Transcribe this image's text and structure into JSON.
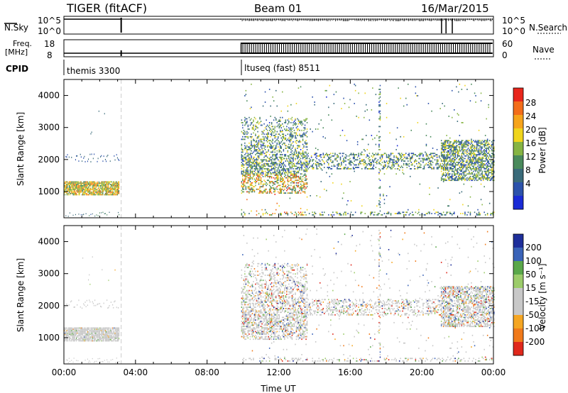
{
  "header": {
    "title": "TIGER (fitACF)",
    "beam": "Beam 01",
    "date": "16/Mar/2015"
  },
  "params": {
    "nsky_label": "N.Sky",
    "nsky_ticks": [
      "10^5",
      "10^0"
    ],
    "nsearch_label": "N.Search",
    "nsearch_ticks": [
      "10^5",
      "10^0"
    ],
    "freq_label": "Freq.",
    "freq_unit": "[MHz]",
    "freq_ticks": [
      "18",
      "8"
    ],
    "nave_label": "Nave",
    "nave_ticks": [
      "60",
      "0"
    ],
    "cpid_label": "CPID",
    "cpid_segments": [
      {
        "label": "themis 3300",
        "start_hour": 0
      },
      {
        "label": "ltuseq (fast) 8511",
        "start_hour": 9.9
      }
    ]
  },
  "colors": {
    "power": [
      "#1a2bd6",
      "#2c52ab",
      "#3a6b7a",
      "#4a8a5c",
      "#86b443",
      "#f0d51c",
      "#f6a41b",
      "#f36d1a",
      "#e8261c"
    ],
    "velocity": [
      "#1e2e9a",
      "#3a63b8",
      "#5aa84a",
      "#9ccc6a",
      "#c8c8c8",
      "#c8c8c8",
      "#f5a623",
      "#f07a1a",
      "#e0281c"
    ]
  },
  "chart_data": [
    {
      "type": "heatmap",
      "name": "power",
      "xlabel": "Time UT",
      "ylabel": "Slant Range [km]",
      "xlim": [
        0,
        24
      ],
      "ylim": [
        180,
        4500
      ],
      "xticks": [
        "00:00",
        "04:00",
        "08:00",
        "12:00",
        "16:00",
        "20:00",
        "00:00"
      ],
      "yticks": [
        1000,
        2000,
        3000,
        4000
      ],
      "colorbar_label": "Power [dB]",
      "colorbar_ticks": [
        "28",
        "24",
        "20",
        "16",
        "12",
        "8",
        "4"
      ],
      "colorbar_range": [
        0,
        30
      ],
      "data_gap_hours": [
        3.2,
        9.9
      ],
      "echo_regions": [
        {
          "t": [
            0.0,
            3.1
          ],
          "r": [
            850,
            1300
          ],
          "value": 18
        },
        {
          "t": [
            0.5,
            3.0
          ],
          "r": [
            1850,
            2150
          ],
          "value": 6
        },
        {
          "t": [
            9.9,
            13.5
          ],
          "r": [
            900,
            3300
          ],
          "value": 12
        },
        {
          "t": [
            11.0,
            22.0
          ],
          "r": [
            1500,
            2200
          ],
          "value": 6
        },
        {
          "t": [
            21.0,
            24.0
          ],
          "r": [
            1200,
            2600
          ],
          "value": 16
        }
      ]
    },
    {
      "type": "heatmap",
      "name": "velocity",
      "xlabel": "Time UT",
      "ylabel": "Slant Range [km]",
      "xlim": [
        0,
        24
      ],
      "ylim": [
        180,
        4500
      ],
      "xticks": [
        "00:00",
        "04:00",
        "08:00",
        "12:00",
        "16:00",
        "20:00",
        "00:00"
      ],
      "yticks": [
        1000,
        2000,
        3000,
        4000
      ],
      "colorbar_label": "Velocity [m s⁻¹]",
      "colorbar_ticks": [
        "200",
        "100",
        "50",
        "15",
        "-15",
        "-50",
        "-100",
        "-200"
      ],
      "colorbar_range": [
        -250,
        250
      ],
      "data_gap_hours": [
        3.2,
        9.9
      ]
    }
  ]
}
